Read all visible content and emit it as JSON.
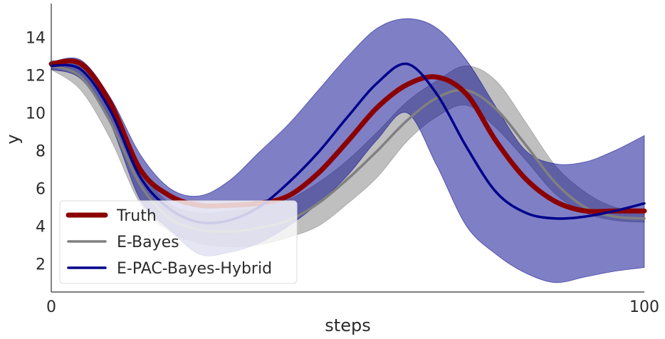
{
  "chart_data": {
    "type": "line",
    "title": "",
    "xlabel": "steps",
    "ylabel": "y",
    "xlim": [
      0,
      100
    ],
    "ylim": [
      0.5,
      15.8
    ],
    "xticks": [
      0,
      100
    ],
    "yticks": [
      2,
      4,
      6,
      8,
      10,
      12,
      14
    ],
    "grid": false,
    "legend_position": "lower-left",
    "series": [
      {
        "name": "Truth",
        "color": "#8b0000",
        "x": [
          0,
          5,
          10,
          15,
          20,
          25,
          30,
          35,
          40,
          45,
          50,
          55,
          60,
          65,
          70,
          75,
          80,
          85,
          90,
          95,
          100
        ],
        "y": [
          12.6,
          12.6,
          10.5,
          7.0,
          5.6,
          5.1,
          5.1,
          5.2,
          5.6,
          6.8,
          8.5,
          10.3,
          11.5,
          11.9,
          11.0,
          8.5,
          6.5,
          5.3,
          4.8,
          4.8,
          4.8
        ]
      },
      {
        "name": "E-Bayes",
        "color": "#808080",
        "x": [
          0,
          5,
          10,
          15,
          20,
          25,
          30,
          35,
          40,
          45,
          50,
          55,
          60,
          65,
          70,
          75,
          80,
          85,
          90,
          95,
          100
        ],
        "y": [
          12.5,
          11.9,
          9.5,
          6.2,
          4.4,
          3.8,
          3.7,
          3.9,
          4.3,
          5.2,
          6.5,
          8.0,
          9.6,
          10.8,
          11.2,
          10.2,
          8.3,
          6.3,
          5.0,
          4.5,
          4.4
        ],
        "band_upper": [
          12.8,
          12.4,
          10.2,
          7.0,
          5.2,
          4.7,
          4.8,
          5.0,
          5.4,
          6.3,
          7.5,
          9.0,
          10.6,
          11.7,
          12.5,
          11.7,
          9.5,
          7.2,
          5.8,
          5.0,
          4.8
        ],
        "band_lower": [
          12.3,
          11.2,
          8.6,
          5.2,
          3.7,
          3.1,
          2.9,
          3.0,
          3.4,
          4.0,
          5.2,
          6.6,
          8.5,
          9.8,
          10.4,
          9.2,
          7.5,
          5.7,
          4.7,
          4.3,
          4.2
        ]
      },
      {
        "name": "E-PAC-Bayes-Hybrid",
        "color": "#00008b",
        "x": [
          0,
          5,
          10,
          15,
          20,
          25,
          30,
          35,
          40,
          45,
          50,
          55,
          60,
          65,
          70,
          75,
          80,
          85,
          90,
          95,
          100
        ],
        "y": [
          12.5,
          12.3,
          10.1,
          6.6,
          4.9,
          4.2,
          4.3,
          5.0,
          6.3,
          7.9,
          9.8,
          11.6,
          12.6,
          11.0,
          8.2,
          5.8,
          4.7,
          4.4,
          4.5,
          4.8,
          5.2
        ],
        "band_upper": [
          12.7,
          12.8,
          10.8,
          7.8,
          6.0,
          5.6,
          6.4,
          7.9,
          9.4,
          11.2,
          13.0,
          14.5,
          15.0,
          14.5,
          12.8,
          10.3,
          8.0,
          7.3,
          7.4,
          8.0,
          8.8
        ],
        "band_lower": [
          12.3,
          11.8,
          9.4,
          5.4,
          3.8,
          2.5,
          2.6,
          3.1,
          4.0,
          5.2,
          6.7,
          8.6,
          10.0,
          7.2,
          4.0,
          2.5,
          1.5,
          1.0,
          1.3,
          1.6,
          1.8
        ]
      }
    ]
  }
}
